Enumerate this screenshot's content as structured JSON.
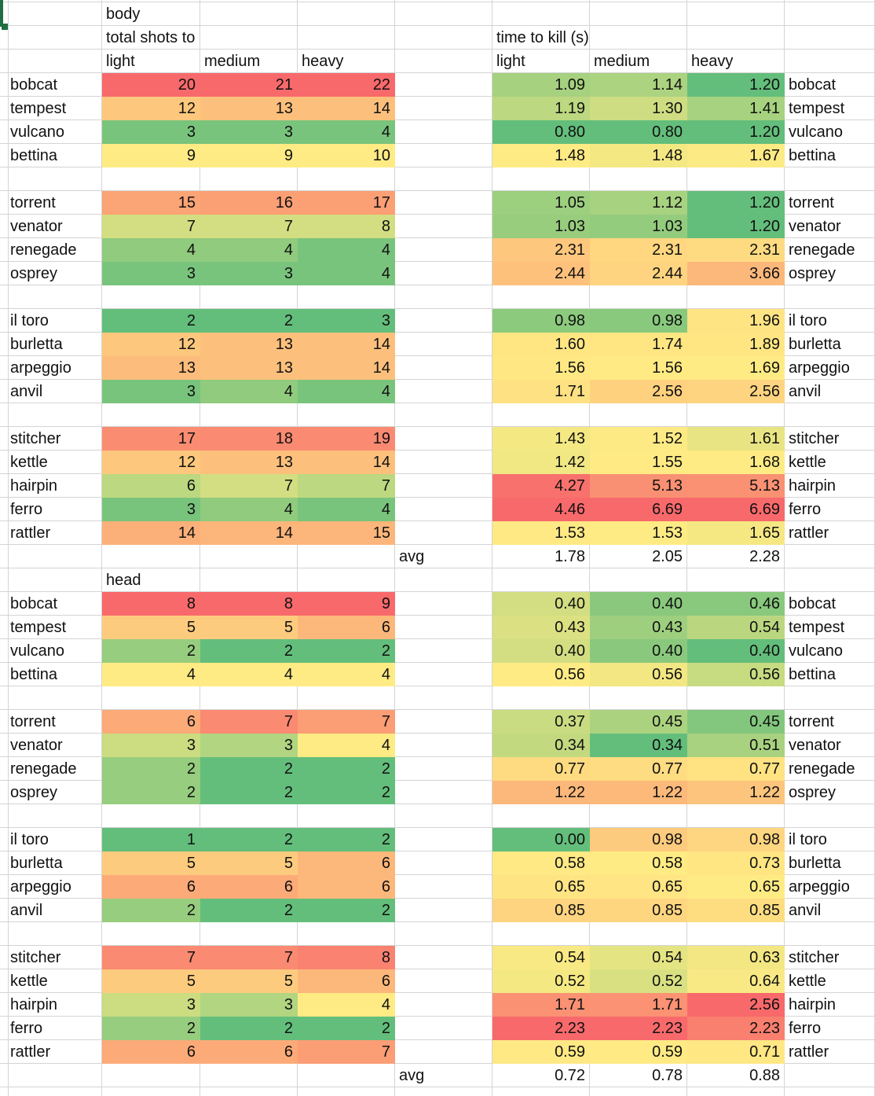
{
  "shots_title": "total shots to kill",
  "time_title": "time to kill (s)",
  "columns": [
    "light",
    "medium",
    "heavy"
  ],
  "color_scale": [
    "#63be7b",
    "#ffeb84",
    "#f8696b"
  ],
  "sections": [
    {
      "title": "body",
      "avg_label": "avg",
      "avg": [
        "1.78",
        "2.05",
        "2.28"
      ],
      "groups": [
        [
          {
            "name": "bobcat",
            "shots": [
              20,
              21,
              22
            ],
            "time": [
              "1.09",
              "1.14",
              "1.20"
            ]
          },
          {
            "name": "tempest",
            "shots": [
              12,
              13,
              14
            ],
            "time": [
              "1.19",
              "1.30",
              "1.41"
            ]
          },
          {
            "name": "vulcano",
            "shots": [
              3,
              3,
              4
            ],
            "time": [
              "0.80",
              "0.80",
              "1.20"
            ]
          },
          {
            "name": "bettina",
            "shots": [
              9,
              9,
              10
            ],
            "time": [
              "1.48",
              "1.48",
              "1.67"
            ]
          }
        ],
        [
          {
            "name": "torrent",
            "shots": [
              15,
              16,
              17
            ],
            "time": [
              "1.05",
              "1.12",
              "1.20"
            ]
          },
          {
            "name": "venator",
            "shots": [
              7,
              7,
              8
            ],
            "time": [
              "1.03",
              "1.03",
              "1.20"
            ]
          },
          {
            "name": "renegade",
            "shots": [
              4,
              4,
              4
            ],
            "time": [
              "2.31",
              "2.31",
              "2.31"
            ]
          },
          {
            "name": "osprey",
            "shots": [
              3,
              3,
              4
            ],
            "time": [
              "2.44",
              "2.44",
              "3.66"
            ]
          }
        ],
        [
          {
            "name": "il toro",
            "shots": [
              2,
              2,
              3
            ],
            "time": [
              "0.98",
              "0.98",
              "1.96"
            ]
          },
          {
            "name": "burletta",
            "shots": [
              12,
              13,
              14
            ],
            "time": [
              "1.60",
              "1.74",
              "1.89"
            ]
          },
          {
            "name": "arpeggio",
            "shots": [
              13,
              13,
              14
            ],
            "time": [
              "1.56",
              "1.56",
              "1.69"
            ]
          },
          {
            "name": "anvil",
            "shots": [
              3,
              4,
              4
            ],
            "time": [
              "1.71",
              "2.56",
              "2.56"
            ]
          }
        ],
        [
          {
            "name": "stitcher",
            "shots": [
              17,
              18,
              19
            ],
            "time": [
              "1.43",
              "1.52",
              "1.61"
            ]
          },
          {
            "name": "kettle",
            "shots": [
              12,
              13,
              14
            ],
            "time": [
              "1.42",
              "1.55",
              "1.68"
            ]
          },
          {
            "name": "hairpin",
            "shots": [
              6,
              7,
              7
            ],
            "time": [
              "4.27",
              "5.13",
              "5.13"
            ]
          },
          {
            "name": "ferro",
            "shots": [
              3,
              4,
              4
            ],
            "time": [
              "4.46",
              "6.69",
              "6.69"
            ]
          },
          {
            "name": "rattler",
            "shots": [
              14,
              14,
              15
            ],
            "time": [
              "1.53",
              "1.53",
              "1.65"
            ]
          }
        ]
      ]
    },
    {
      "title": "head",
      "avg_label": "avg",
      "avg": [
        "0.72",
        "0.78",
        "0.88"
      ],
      "groups": [
        [
          {
            "name": "bobcat",
            "shots": [
              8,
              8,
              9
            ],
            "time": [
              "0.40",
              "0.40",
              "0.46"
            ]
          },
          {
            "name": "tempest",
            "shots": [
              5,
              5,
              6
            ],
            "time": [
              "0.43",
              "0.43",
              "0.54"
            ]
          },
          {
            "name": "vulcano",
            "shots": [
              2,
              2,
              2
            ],
            "time": [
              "0.40",
              "0.40",
              "0.40"
            ]
          },
          {
            "name": "bettina",
            "shots": [
              4,
              4,
              4
            ],
            "time": [
              "0.56",
              "0.56",
              "0.56"
            ]
          }
        ],
        [
          {
            "name": "torrent",
            "shots": [
              6,
              7,
              7
            ],
            "time": [
              "0.37",
              "0.45",
              "0.45"
            ]
          },
          {
            "name": "venator",
            "shots": [
              3,
              3,
              4
            ],
            "time": [
              "0.34",
              "0.34",
              "0.51"
            ]
          },
          {
            "name": "renegade",
            "shots": [
              2,
              2,
              2
            ],
            "time": [
              "0.77",
              "0.77",
              "0.77"
            ]
          },
          {
            "name": "osprey",
            "shots": [
              2,
              2,
              2
            ],
            "time": [
              "1.22",
              "1.22",
              "1.22"
            ]
          }
        ],
        [
          {
            "name": "il toro",
            "shots": [
              1,
              2,
              2
            ],
            "time": [
              "0.00",
              "0.98",
              "0.98"
            ]
          },
          {
            "name": "burletta",
            "shots": [
              5,
              5,
              6
            ],
            "time": [
              "0.58",
              "0.58",
              "0.73"
            ]
          },
          {
            "name": "arpeggio",
            "shots": [
              6,
              6,
              6
            ],
            "time": [
              "0.65",
              "0.65",
              "0.65"
            ]
          },
          {
            "name": "anvil",
            "shots": [
              2,
              2,
              2
            ],
            "time": [
              "0.85",
              "0.85",
              "0.85"
            ]
          }
        ],
        [
          {
            "name": "stitcher",
            "shots": [
              7,
              7,
              8
            ],
            "time": [
              "0.54",
              "0.54",
              "0.63"
            ]
          },
          {
            "name": "kettle",
            "shots": [
              5,
              5,
              6
            ],
            "time": [
              "0.52",
              "0.52",
              "0.64"
            ]
          },
          {
            "name": "hairpin",
            "shots": [
              3,
              3,
              4
            ],
            "time": [
              "1.71",
              "1.71",
              "2.56"
            ]
          },
          {
            "name": "ferro",
            "shots": [
              2,
              2,
              2
            ],
            "time": [
              "2.23",
              "2.23",
              "2.23"
            ]
          },
          {
            "name": "rattler",
            "shots": [
              6,
              6,
              7
            ],
            "time": [
              "0.59",
              "0.59",
              "0.71"
            ]
          }
        ]
      ]
    }
  ]
}
